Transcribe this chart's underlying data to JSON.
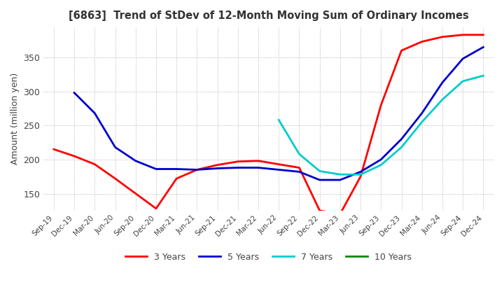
{
  "title": "[6863]  Trend of StDev of 12-Month Moving Sum of Ordinary Incomes",
  "ylabel": "Amount (million yen)",
  "ylim": [
    125,
    395
  ],
  "yticks": [
    150,
    200,
    250,
    300,
    350
  ],
  "background_color": "#ffffff",
  "grid_color": "#aaaaaa",
  "line_colors": {
    "3y": "#ff0000",
    "5y": "#0000cc",
    "7y": "#00cccc",
    "10y": "#008800"
  },
  "legend_labels": [
    "3 Years",
    "5 Years",
    "7 Years",
    "10 Years"
  ],
  "x_labels": [
    "Sep-19",
    "Dec-19",
    "Mar-20",
    "Jun-20",
    "Sep-20",
    "Dec-20",
    "Mar-21",
    "Jun-21",
    "Sep-21",
    "Dec-21",
    "Mar-22",
    "Jun-22",
    "Sep-22",
    "Dec-22",
    "Mar-23",
    "Jun-23",
    "Sep-23",
    "Dec-23",
    "Mar-24",
    "Jun-24",
    "Sep-24",
    "Dec-24"
  ],
  "series_3y": [
    215,
    205,
    193,
    172,
    150,
    128,
    172,
    185,
    192,
    197,
    198,
    193,
    188,
    125,
    120,
    175,
    280,
    360,
    373,
    380,
    383,
    383
  ],
  "series_5y": [
    null,
    298,
    268,
    218,
    198,
    186,
    186,
    185,
    187,
    188,
    188,
    185,
    182,
    170,
    170,
    182,
    200,
    230,
    268,
    313,
    348,
    365
  ],
  "series_7y": [
    null,
    null,
    null,
    null,
    null,
    null,
    null,
    null,
    null,
    null,
    null,
    258,
    208,
    183,
    178,
    178,
    192,
    218,
    255,
    288,
    315,
    323
  ],
  "series_10y": [
    null,
    null,
    null,
    null,
    null,
    null,
    null,
    null,
    null,
    null,
    null,
    null,
    null,
    null,
    null,
    null,
    null,
    null,
    null,
    null,
    null,
    null
  ]
}
